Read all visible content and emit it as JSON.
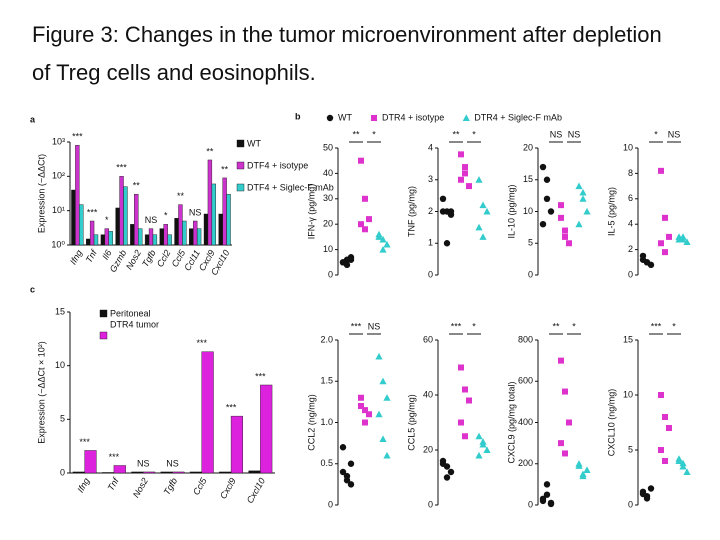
{
  "slide": {
    "title": "Figure 3: Changes in the tumor microenvironment after depletion of Treg cells and eosinophils."
  },
  "chart_data": [
    {
      "type": "bar",
      "label": "a",
      "ylabel": "Expression (−ΔΔCt)",
      "log_scale": true,
      "legend": "right",
      "categories": [
        "Ifng",
        "Tnf",
        "Il6",
        "Gzmb",
        "Nos2",
        "Tgfb",
        "Ccl2",
        "Ccl5",
        "Ccl11",
        "Cxcl9",
        "Cxcl10"
      ],
      "annotations": [
        "***",
        "***",
        "*",
        "***",
        "**",
        "NS",
        "*",
        "**",
        "NS",
        "**",
        "**"
      ],
      "series": [
        {
          "name": "WT",
          "color": "#111111",
          "values": [
            40,
            1.5,
            2,
            12,
            4,
            2,
            3,
            6,
            3,
            8,
            8
          ]
        },
        {
          "name": "DTF4 + isotype",
          "color": "#cc33cc",
          "values": [
            800,
            5,
            3,
            100,
            30,
            3,
            4,
            15,
            5,
            300,
            90
          ]
        },
        {
          "name": "DTF4 + Siglec-F mAb",
          "color": "#33cccc",
          "values": [
            15,
            2,
            2.5,
            50,
            3,
            2,
            2,
            5,
            3,
            60,
            30
          ]
        }
      ],
      "ylim": [
        1,
        1000
      ],
      "yticks": [
        {
          "value": 1,
          "label": "10⁰"
        },
        {
          "value": 10,
          "label": "10¹"
        },
        {
          "value": 100,
          "label": "10²"
        },
        {
          "value": 1000,
          "label": "10³"
        }
      ]
    },
    {
      "type": "bar",
      "label": "c",
      "ylabel": "Expression (−ΔΔCt × 10²)",
      "log_scale": false,
      "legend": "upper left",
      "categories": [
        "Ifng",
        "Tnf",
        "Nos2",
        "Tgfb",
        "Ccl5",
        "Cxcl9",
        "Cxcl10"
      ],
      "annotations": [
        "***",
        "***",
        "NS",
        "NS",
        "***",
        "***",
        "***"
      ],
      "series": [
        {
          "name": "Peritoneal",
          "color": "#111111",
          "values": [
            0.1,
            0.05,
            0.1,
            0.1,
            0.1,
            0.1,
            0.2
          ]
        },
        {
          "name": "DTR4 tumor",
          "color": "#dd22dd",
          "values": [
            2.1,
            0.7,
            0.1,
            0.1,
            11.3,
            5.3,
            8.2
          ]
        }
      ],
      "ylim": [
        0,
        15
      ],
      "yticks": [
        0,
        5,
        10,
        15
      ]
    },
    {
      "type": "strip",
      "label": "b",
      "series": [
        {
          "name": "WT",
          "color": "#111111",
          "marker": "circle"
        },
        {
          "name": "DTR4 + isotype",
          "color": "#dd33cc",
          "marker": "square"
        },
        {
          "name": "DTR4 + Siglec-F mAb",
          "color": "#33cccc",
          "marker": "triangle"
        }
      ],
      "panels": [
        {
          "ylabel": "IFN-γ (pg/mg)",
          "ylim": [
            0,
            50
          ],
          "yticks": [
            0,
            10,
            20,
            30,
            40,
            50
          ],
          "annotations": [
            "**",
            "*"
          ],
          "values": [
            [
              5,
              6,
              7,
              5,
              4,
              6
            ],
            [
              45,
              30,
              22,
              20,
              18
            ],
            [
              15,
              14,
              12,
              16,
              10
            ]
          ]
        },
        {
          "ylabel": "TNF (pg/mg)",
          "ylim": [
            0,
            4
          ],
          "yticks": [
            0,
            1,
            2,
            3,
            4
          ],
          "annotations": [
            "**",
            "*"
          ],
          "values": [
            [
              2,
              2,
              1.9,
              2.4,
              1,
              2
            ],
            [
              3.8,
              3.4,
              2.8,
              3,
              3.2
            ],
            [
              3,
              2.2,
              2,
              1.5,
              1.2
            ]
          ]
        },
        {
          "ylabel": "IL-10 (pg/mg)",
          "ylim": [
            0,
            20
          ],
          "yticks": [
            0,
            5,
            10,
            15,
            20
          ],
          "annotations": [
            "NS",
            "NS"
          ],
          "values": [
            [
              17,
              15,
              10,
              8,
              12
            ],
            [
              9,
              7,
              5,
              11,
              6
            ],
            [
              14,
              12,
              10,
              8,
              13
            ]
          ]
        },
        {
          "ylabel": "IL-5 (pg/mg)",
          "ylim": [
            0,
            10
          ],
          "yticks": [
            0,
            2,
            4,
            6,
            8,
            10
          ],
          "annotations": [
            "*",
            "NS"
          ],
          "values": [
            [
              1.2,
              1,
              0.8,
              1.5,
              1
            ],
            [
              8.2,
              4.5,
              3,
              2.5,
              1.8
            ],
            [
              3,
              2.8,
              2.6,
              2.8,
              3
            ]
          ]
        },
        {
          "ylabel": "CCL2 (ng/mg)",
          "ylim": [
            0,
            2
          ],
          "yticks": [
            0,
            0.5,
            {
              "value": 1,
              "label": "1.0"
            },
            1.5,
            {
              "value": 2,
              "label": "2.0"
            }
          ],
          "annotations": [
            "***",
            "NS"
          ],
          "values": [
            [
              0.4,
              0.3,
              0.5,
              0.7,
              0.35,
              0.25
            ],
            [
              1.3,
              1.15,
              1.1,
              1.2,
              1
            ],
            [
              1.8,
              1.5,
              1.3,
              1.1,
              0.8,
              0.6
            ]
          ]
        },
        {
          "ylabel": "CCL5 (pg/mg)",
          "ylim": [
            0,
            60
          ],
          "yticks": [
            0,
            20,
            40,
            60
          ],
          "annotations": [
            "***",
            "*"
          ],
          "values": [
            [
              15,
              14,
              12,
              16,
              10
            ],
            [
              50,
              42,
              38,
              30,
              25
            ],
            [
              25,
              22,
              20,
              18,
              23
            ]
          ]
        },
        {
          "ylabel": "CXCL9 (pg/mg total)",
          "ylim": [
            0,
            800
          ],
          "yticks": [
            0,
            200,
            400,
            600,
            800
          ],
          "annotations": [
            "**",
            "*"
          ],
          "values": [
            [
              20,
              50,
              10,
              30,
              100,
              5
            ],
            [
              700,
              550,
              400,
              300,
              250
            ],
            [
              200,
              150,
              170,
              190,
              140
            ]
          ]
        },
        {
          "ylabel": "CXCL10 (ng/mg)",
          "ylim": [
            0,
            15
          ],
          "yticks": [
            0,
            5,
            10,
            15
          ],
          "annotations": [
            "***",
            "*"
          ],
          "values": [
            [
              1,
              0.8,
              1.5,
              1.2,
              0.6
            ],
            [
              10,
              8,
              7,
              5,
              4
            ],
            [
              4,
              3.5,
              3,
              4.2,
              3.8
            ]
          ]
        }
      ]
    }
  ]
}
